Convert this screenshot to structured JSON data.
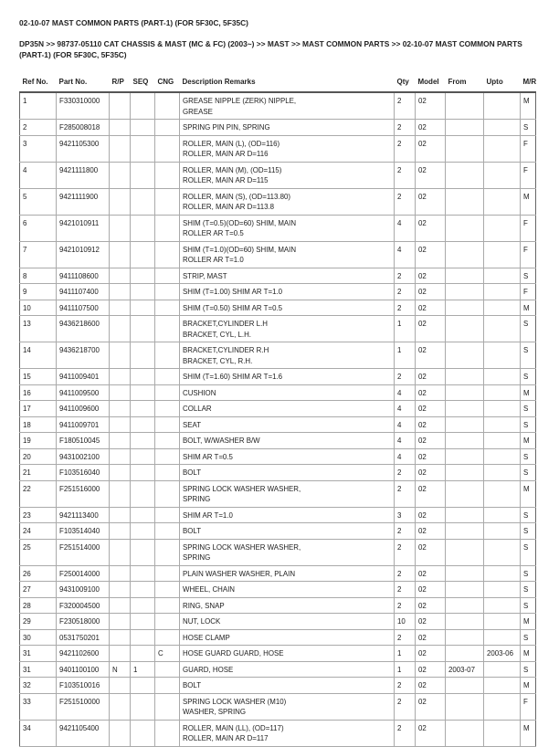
{
  "title": "02-10-07 MAST COMMON PARTS (PART-1) (FOR 5F30C, 5F35C)",
  "breadcrumb": "DP35N >> 98737-05110 CAT CHASSIS & MAST (MC & FC) (2003~) >> MAST >> MAST COMMON PARTS >> 02-10-07 MAST COMMON PARTS (PART-1) (FOR 5F30C, 5F35C)",
  "columns": [
    "Ref No.",
    "Part No.",
    "R/P",
    "SEQ",
    "CNG",
    "Description Remarks",
    "Qty",
    "Model",
    "From",
    "Upto",
    "M/R"
  ],
  "rows": [
    [
      "1",
      "F330310000",
      "",
      "",
      "",
      "GREASE NIPPLE (ZERK) NIPPLE,\nGREASE",
      "2",
      "02",
      "",
      "",
      "M"
    ],
    [
      "2",
      "F285008018",
      "",
      "",
      "",
      "SPRING PIN PIN, SPRING",
      "2",
      "02",
      "",
      "",
      "S"
    ],
    [
      "3",
      "9421105300",
      "",
      "",
      "",
      "ROLLER, MAIN (L), (OD=116)\nROLLER, MAIN AR D=116",
      "2",
      "02",
      "",
      "",
      "F"
    ],
    [
      "4",
      "9421111800",
      "",
      "",
      "",
      "ROLLER, MAIN (M), (OD=115)\nROLLER, MAIN AR D=115",
      "2",
      "02",
      "",
      "",
      "F"
    ],
    [
      "5",
      "9421111900",
      "",
      "",
      "",
      "ROLLER, MAIN (S), (OD=113.80)\nROLLER, MAIN AR D=113.8",
      "2",
      "02",
      "",
      "",
      "M"
    ],
    [
      "6",
      "9421010911",
      "",
      "",
      "",
      "SHIM (T=0.5)(OD=60) SHIM, MAIN\nROLLER AR T=0.5",
      "4",
      "02",
      "",
      "",
      "F"
    ],
    [
      "7",
      "9421010912",
      "",
      "",
      "",
      "SHIM (T=1.0)(OD=60) SHIM, MAIN\nROLLER AR T=1.0",
      "4",
      "02",
      "",
      "",
      "F"
    ],
    [
      "8",
      "9411108600",
      "",
      "",
      "",
      "STRIP, MAST",
      "2",
      "02",
      "",
      "",
      "S"
    ],
    [
      "9",
      "9411107400",
      "",
      "",
      "",
      "SHIM (T=1.00) SHIM AR T=1.0",
      "2",
      "02",
      "",
      "",
      "F"
    ],
    [
      "10",
      "9411107500",
      "",
      "",
      "",
      "SHIM (T=0.50) SHIM AR T=0.5",
      "2",
      "02",
      "",
      "",
      "M"
    ],
    [
      "13",
      "9436218600",
      "",
      "",
      "",
      "BRACKET,CYLINDER L.H\nBRACKET, CYL, L.H.",
      "1",
      "02",
      "",
      "",
      "S"
    ],
    [
      "14",
      "9436218700",
      "",
      "",
      "",
      "BRACKET,CYLINDER R.H\nBRACKET, CYL, R.H.",
      "1",
      "02",
      "",
      "",
      "S"
    ],
    [
      "15",
      "9411009401",
      "",
      "",
      "",
      "SHIM (T=1.60) SHIM AR T=1.6",
      "2",
      "02",
      "",
      "",
      "S"
    ],
    [
      "16",
      "9411009500",
      "",
      "",
      "",
      "CUSHION",
      "4",
      "02",
      "",
      "",
      "M"
    ],
    [
      "17",
      "9411009600",
      "",
      "",
      "",
      "COLLAR",
      "4",
      "02",
      "",
      "",
      "S"
    ],
    [
      "18",
      "9411009701",
      "",
      "",
      "",
      "SEAT",
      "4",
      "02",
      "",
      "",
      "S"
    ],
    [
      "19",
      "F180510045",
      "",
      "",
      "",
      "BOLT, W/WASHER B/W",
      "4",
      "02",
      "",
      "",
      "M"
    ],
    [
      "20",
      "9431002100",
      "",
      "",
      "",
      "SHIM AR T=0.5",
      "4",
      "02",
      "",
      "",
      "S"
    ],
    [
      "21",
      "F103516040",
      "",
      "",
      "",
      "BOLT",
      "2",
      "02",
      "",
      "",
      "S"
    ],
    [
      "22",
      "F251516000",
      "",
      "",
      "",
      "SPRING LOCK WASHER WASHER,\nSPRING",
      "2",
      "02",
      "",
      "",
      "M"
    ],
    [
      "23",
      "9421113400",
      "",
      "",
      "",
      "SHIM AR T=1.0",
      "3",
      "02",
      "",
      "",
      "S"
    ],
    [
      "24",
      "F103514040",
      "",
      "",
      "",
      "BOLT",
      "2",
      "02",
      "",
      "",
      "S"
    ],
    [
      "25",
      "F251514000",
      "",
      "",
      "",
      "SPRING LOCK WASHER WASHER,\nSPRING",
      "2",
      "02",
      "",
      "",
      "S"
    ],
    [
      "26",
      "F250014000",
      "",
      "",
      "",
      "PLAIN WASHER WASHER, PLAIN",
      "2",
      "02",
      "",
      "",
      "S"
    ],
    [
      "27",
      "9431009100",
      "",
      "",
      "",
      "WHEEL, CHAIN",
      "2",
      "02",
      "",
      "",
      "S"
    ],
    [
      "28",
      "F320004500",
      "",
      "",
      "",
      "RING, SNAP",
      "2",
      "02",
      "",
      "",
      "S"
    ],
    [
      "29",
      "F230518000",
      "",
      "",
      "",
      "NUT, LOCK",
      "10",
      "02",
      "",
      "",
      "M"
    ],
    [
      "30",
      "0531750201",
      "",
      "",
      "",
      "HOSE CLAMP",
      "2",
      "02",
      "",
      "",
      "S"
    ],
    [
      "31",
      "9421102600",
      "",
      "",
      "C",
      "HOSE GUARD GUARD, HOSE",
      "1",
      "02",
      "",
      "2003-06",
      "M"
    ],
    [
      "31",
      "9401100100",
      "N",
      "1",
      "",
      "GUARD, HOSE",
      "1",
      "02",
      "2003-07",
      "",
      "S"
    ],
    [
      "32",
      "F103510016",
      "",
      "",
      "",
      "BOLT",
      "2",
      "02",
      "",
      "",
      "M"
    ],
    [
      "33",
      "F251510000",
      "",
      "",
      "",
      "SPRING LOCK WASHER (M10)\nWASHER, SPRING",
      "2",
      "02",
      "",
      "",
      "F"
    ],
    [
      "34",
      "9421105400",
      "",
      "",
      "",
      "ROLLER, MAIN (LL), (OD=117)\nROLLER, MAIN AR D=117",
      "2",
      "02",
      "",
      "",
      "M"
    ]
  ]
}
